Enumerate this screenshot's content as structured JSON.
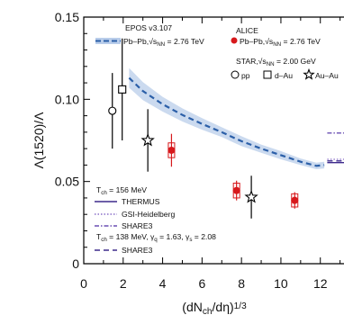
{
  "chart_data": {
    "type": "scatter",
    "xlabel": "(dN<sub>ch</sub>/dη)<sup>1/3</sup>",
    "ylabel": "Λ(1520)/Λ",
    "xlim": [
      0,
      13.2
    ],
    "ylim": [
      0,
      0.15
    ],
    "x_ticks": [
      "0",
      "2",
      "4",
      "6",
      "8",
      "10",
      "12"
    ],
    "y_ticks": [
      "0",
      "0.05",
      "0.10",
      "0.15"
    ],
    "grid": false,
    "series": [
      {
        "name": "Pb–Pb, √s_NN = 2.76 TeV",
        "group": "ALICE",
        "marker": "filled-circle",
        "color": "#d7191c",
        "points": [
          {
            "x": 4.45,
            "y": 0.069,
            "stat": 0.01,
            "sys": 0.0045
          },
          {
            "x": 7.75,
            "y": 0.0445,
            "stat": 0.006,
            "sys": 0.0045
          },
          {
            "x": 10.7,
            "y": 0.0385,
            "stat": 0.005,
            "sys": 0.004
          }
        ]
      },
      {
        "name": "pp",
        "group": "STAR, √s_NN = 2.00 GeV",
        "marker": "open-circle",
        "color": "#000000",
        "points": [
          {
            "x": 1.45,
            "y": 0.093,
            "stat": 0.023
          }
        ]
      },
      {
        "name": "d–Au",
        "group": "STAR, √s_NN = 2.00 GeV",
        "marker": "open-square",
        "color": "#000000",
        "points": [
          {
            "x": 1.95,
            "y": 0.106,
            "stat": 0.031
          }
        ]
      },
      {
        "name": "Au–Au",
        "group": "STAR, √s_NN = 2.00 GeV",
        "marker": "open-star",
        "color": "#000000",
        "points": [
          {
            "x": 3.25,
            "y": 0.075,
            "stat": 0.019
          },
          {
            "x": 8.5,
            "y": 0.0405,
            "stat": 0.013
          }
        ]
      },
      {
        "name": "Pb–Pb, √s_NN = 2.76 TeV",
        "group": "EPOS v3.107",
        "marker": "dashed-line-band",
        "color": "#2b5fa8",
        "x": [
          2.3,
          3.0,
          4.0,
          5.0,
          6.0,
          7.0,
          8.0,
          9.0,
          10.0,
          11.0,
          11.8,
          12.2
        ],
        "y": [
          0.113,
          0.105,
          0.097,
          0.0905,
          0.085,
          0.08,
          0.0745,
          0.07,
          0.066,
          0.062,
          0.0595,
          0.06
        ],
        "band": [
          0.006,
          0.0055,
          0.0045,
          0.004,
          0.0035,
          0.003,
          0.003,
          0.0025,
          0.0025,
          0.002,
          0.002,
          0.002
        ]
      },
      {
        "name": "THERMUS",
        "group": "T_ch = 156 MeV",
        "marker": "solid-line",
        "color": "#3d2a8c",
        "x": [
          12.35,
          13.2
        ],
        "y": [
          0.0615,
          0.0615
        ]
      },
      {
        "name": "GSI-Heidelberg",
        "group": "T_ch = 156 MeV",
        "marker": "dotted-line",
        "color": "#8a6fc8",
        "x": [
          12.35,
          13.2
        ],
        "y": [
          0.0635,
          0.0635
        ]
      },
      {
        "name": "SHARE3",
        "group": "T_ch = 156 MeV",
        "marker": "dash-dot-line",
        "color": "#6a4fb3",
        "x": [
          12.35,
          13.2
        ],
        "y": [
          0.0795,
          0.0795
        ]
      },
      {
        "name": "SHARE3",
        "group": "T_ch = 138 MeV, γ_q = 1.63, γ_s = 2.08",
        "marker": "dashed-line",
        "color": "#3d2a8c",
        "x": [
          12.35,
          13.2
        ],
        "y": [
          0.0625,
          0.0625
        ]
      }
    ],
    "legend": {
      "epos_title": "EPOS v3.107",
      "epos_label": "Pb–Pb,√s<sub>NN</sub> = 2.76 TeV",
      "alice_title": "ALICE",
      "alice_label": "Pb–Pb,√s<sub>NN</sub> = 2.76 TeV",
      "star_title": "STAR,√s<sub>NN</sub> = 2.00 GeV",
      "star_pp": "pp",
      "star_dau": "d–Au",
      "star_auau": "Au–Au",
      "tch156": "T<sub>ch</sub> = 156 MeV",
      "thermus": "THERMUS",
      "gsi": "GSI-Heidelberg",
      "share3_a": "SHARE3",
      "tch138": "T<sub>ch</sub> = 138 MeV, γ<sub>q</sub> = 1.63, γ<sub>s</sub> = 2.08",
      "share3_b": "SHARE3"
    }
  }
}
